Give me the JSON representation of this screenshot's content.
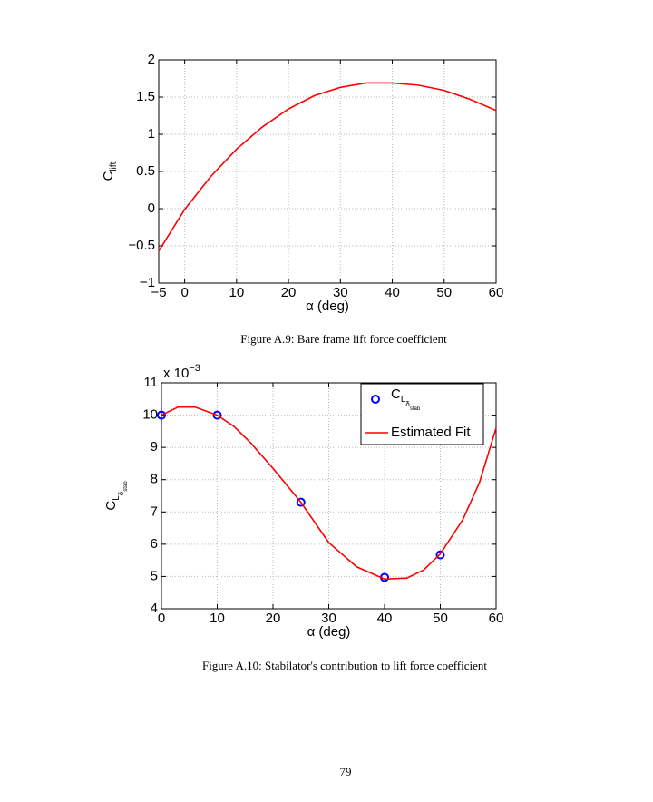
{
  "chart_data": [
    {
      "type": "line",
      "x": [
        -5,
        0,
        5,
        10,
        15,
        20,
        25,
        30,
        35,
        40,
        45,
        50,
        55,
        60
      ],
      "values": [
        -0.57,
        -0.01,
        0.43,
        0.8,
        1.1,
        1.34,
        1.52,
        1.63,
        1.69,
        1.69,
        1.66,
        1.59,
        1.47,
        1.32
      ],
      "color": "#ff0000",
      "xlabel": "α (deg)",
      "ylabel": "C",
      "ylabel_subscripts": [
        "lift"
      ],
      "xlim": [
        -5,
        60
      ],
      "ylim": [
        -1,
        2
      ],
      "xticks": [
        {
          "value": -5,
          "label": "−5"
        },
        0,
        10,
        20,
        30,
        40,
        50,
        60
      ],
      "yticks": [
        {
          "value": -1,
          "label": "−1"
        },
        {
          "value": -0.5,
          "label": "−0.5"
        },
        0,
        0.5,
        1,
        1.5,
        2
      ],
      "grid": true
    },
    {
      "type": "line",
      "series": [
        {
          "name": "C",
          "name_subscripts": [
            "L",
            "δ",
            "stab"
          ],
          "type": "scatter",
          "color": "#0000ff",
          "x": [
            0,
            10,
            25,
            40,
            50
          ],
          "values": [
            10,
            10,
            7.3,
            4.97,
            5.67
          ]
        },
        {
          "name": "Estimated Fit",
          "type": "line",
          "color": "#ff0000",
          "x": [
            0,
            3,
            6,
            10,
            13,
            16,
            20,
            25,
            30,
            35,
            40,
            44,
            47,
            50,
            54,
            57,
            60
          ],
          "values": [
            10,
            10.25,
            10.25,
            10,
            9.65,
            9.14,
            8.35,
            7.3,
            6.05,
            5.3,
            4.92,
            4.95,
            5.2,
            5.7,
            6.75,
            7.9,
            9.6
          ]
        }
      ],
      "xlabel": "α (deg)",
      "ylabel": "C",
      "ylabel_subscripts": [
        "L",
        "δ",
        "stab"
      ],
      "y_multiplier": "x 10",
      "y_multiplier_exponent": "−3",
      "xlim": [
        0,
        60
      ],
      "ylim": [
        4,
        11
      ],
      "xticks": [
        0,
        10,
        20,
        30,
        40,
        50,
        60
      ],
      "yticks": [
        4,
        5,
        6,
        7,
        8,
        9,
        10,
        11
      ],
      "grid": true,
      "legend": "upper-right"
    }
  ],
  "captions": [
    "Figure A.9: Bare frame lift force coefficient",
    "Figure A.10: Stabilator's contribution to lift force coefficient"
  ],
  "page_number": "79"
}
